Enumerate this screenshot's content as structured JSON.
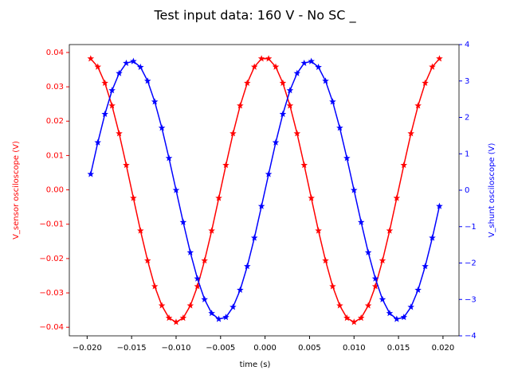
{
  "chart_data": {
    "type": "line",
    "title": "Test input data: 160 V - No SC _",
    "x_label": "time (s)",
    "y_label": "V_sensor osciloscope (V)",
    "y2_label": "V_shunt osciloscope (V)",
    "y_color": "#ff0000",
    "y2_color": "#0000ff",
    "marker": "star",
    "x": [
      -0.0196,
      -0.0188,
      -0.018,
      -0.0172,
      -0.0164,
      -0.0156,
      -0.0148,
      -0.014,
      -0.0132,
      -0.0124,
      -0.0116,
      -0.0108,
      -0.01,
      -0.0092,
      -0.0084,
      -0.0076,
      -0.0068,
      -0.006,
      -0.0052,
      -0.0044,
      -0.0036,
      -0.0028,
      -0.002,
      -0.0012,
      -0.0004,
      0.0004,
      0.0012,
      0.002,
      0.0028,
      0.0036,
      0.0044,
      0.0052,
      0.006,
      0.0068,
      0.0076,
      0.0084,
      0.0092,
      0.01,
      0.0108,
      0.0116,
      0.0124,
      0.0132,
      0.014,
      0.0148,
      0.0156,
      0.0164,
      0.0172,
      0.018,
      0.0188,
      0.0196
    ],
    "series": [
      {
        "name": "V_sensor",
        "color": "#ff0000",
        "axis": "y",
        "values": [
          0.0382,
          0.0358,
          0.0311,
          0.0245,
          0.0164,
          0.0072,
          -0.0024,
          -0.0119,
          -0.0206,
          -0.0281,
          -0.0337,
          -0.0373,
          -0.0385,
          -0.0373,
          -0.0337,
          -0.0281,
          -0.0206,
          -0.0119,
          -0.0024,
          0.0072,
          0.0164,
          0.0245,
          0.0311,
          0.0358,
          0.0382,
          0.0382,
          0.0358,
          0.0311,
          0.0245,
          0.0164,
          0.0072,
          -0.0024,
          -0.0119,
          -0.0206,
          -0.0281,
          -0.0337,
          -0.0373,
          -0.0385,
          -0.0373,
          -0.0337,
          -0.0281,
          -0.0206,
          -0.0119,
          -0.0024,
          0.0072,
          0.0164,
          0.0245,
          0.0311,
          0.0358,
          0.0382
        ]
      },
      {
        "name": "V_shunt",
        "color": "#0000ff",
        "axis": "y2",
        "values": [
          0.44,
          1.31,
          2.09,
          2.74,
          3.21,
          3.49,
          3.54,
          3.38,
          3.0,
          2.43,
          1.71,
          0.88,
          0,
          -0.88,
          -1.71,
          -2.43,
          -3.0,
          -3.38,
          -3.54,
          -3.49,
          -3.21,
          -2.74,
          -2.09,
          -1.31,
          -0.44,
          0.44,
          1.31,
          2.09,
          2.74,
          3.21,
          3.49,
          3.54,
          3.38,
          3.0,
          2.43,
          1.71,
          0.88,
          0,
          -0.88,
          -1.71,
          -2.43,
          -3.0,
          -3.38,
          -3.54,
          -3.49,
          -3.21,
          -2.74,
          -2.09,
          -1.31,
          -0.44
        ]
      }
    ],
    "xlim": [
      -0.022,
      0.0218
    ],
    "xticks": [
      {
        "value": -0.02,
        "label": "−0.020"
      },
      {
        "value": -0.015,
        "label": "−0.015"
      },
      {
        "value": -0.01,
        "label": "−0.010"
      },
      {
        "value": -0.005,
        "label": "−0.005"
      },
      {
        "value": 0,
        "label": "0.000"
      },
      {
        "value": 0.005,
        "label": "0.005"
      },
      {
        "value": 0.01,
        "label": "0.010"
      },
      {
        "value": 0.015,
        "label": "0.015"
      },
      {
        "value": 0.02,
        "label": "0.020"
      }
    ],
    "ylim": [
      -0.0425,
      0.0423
    ],
    "yticks": [
      {
        "value": -0.04,
        "label": "−0.04"
      },
      {
        "value": -0.03,
        "label": "−0.03"
      },
      {
        "value": -0.02,
        "label": "−0.02"
      },
      {
        "value": -0.01,
        "label": "−0.01"
      },
      {
        "value": 0,
        "label": "0.00"
      },
      0.01,
      0.02,
      0.03,
      0.04
    ],
    "y2lim": [
      -4,
      4
    ],
    "y2ticks": [
      {
        "value": -4,
        "label": "−4"
      },
      {
        "value": -3,
        "label": "−3"
      },
      {
        "value": -2,
        "label": "−2"
      },
      {
        "value": -1,
        "label": "−1"
      },
      0,
      1,
      2,
      3,
      4
    ]
  }
}
